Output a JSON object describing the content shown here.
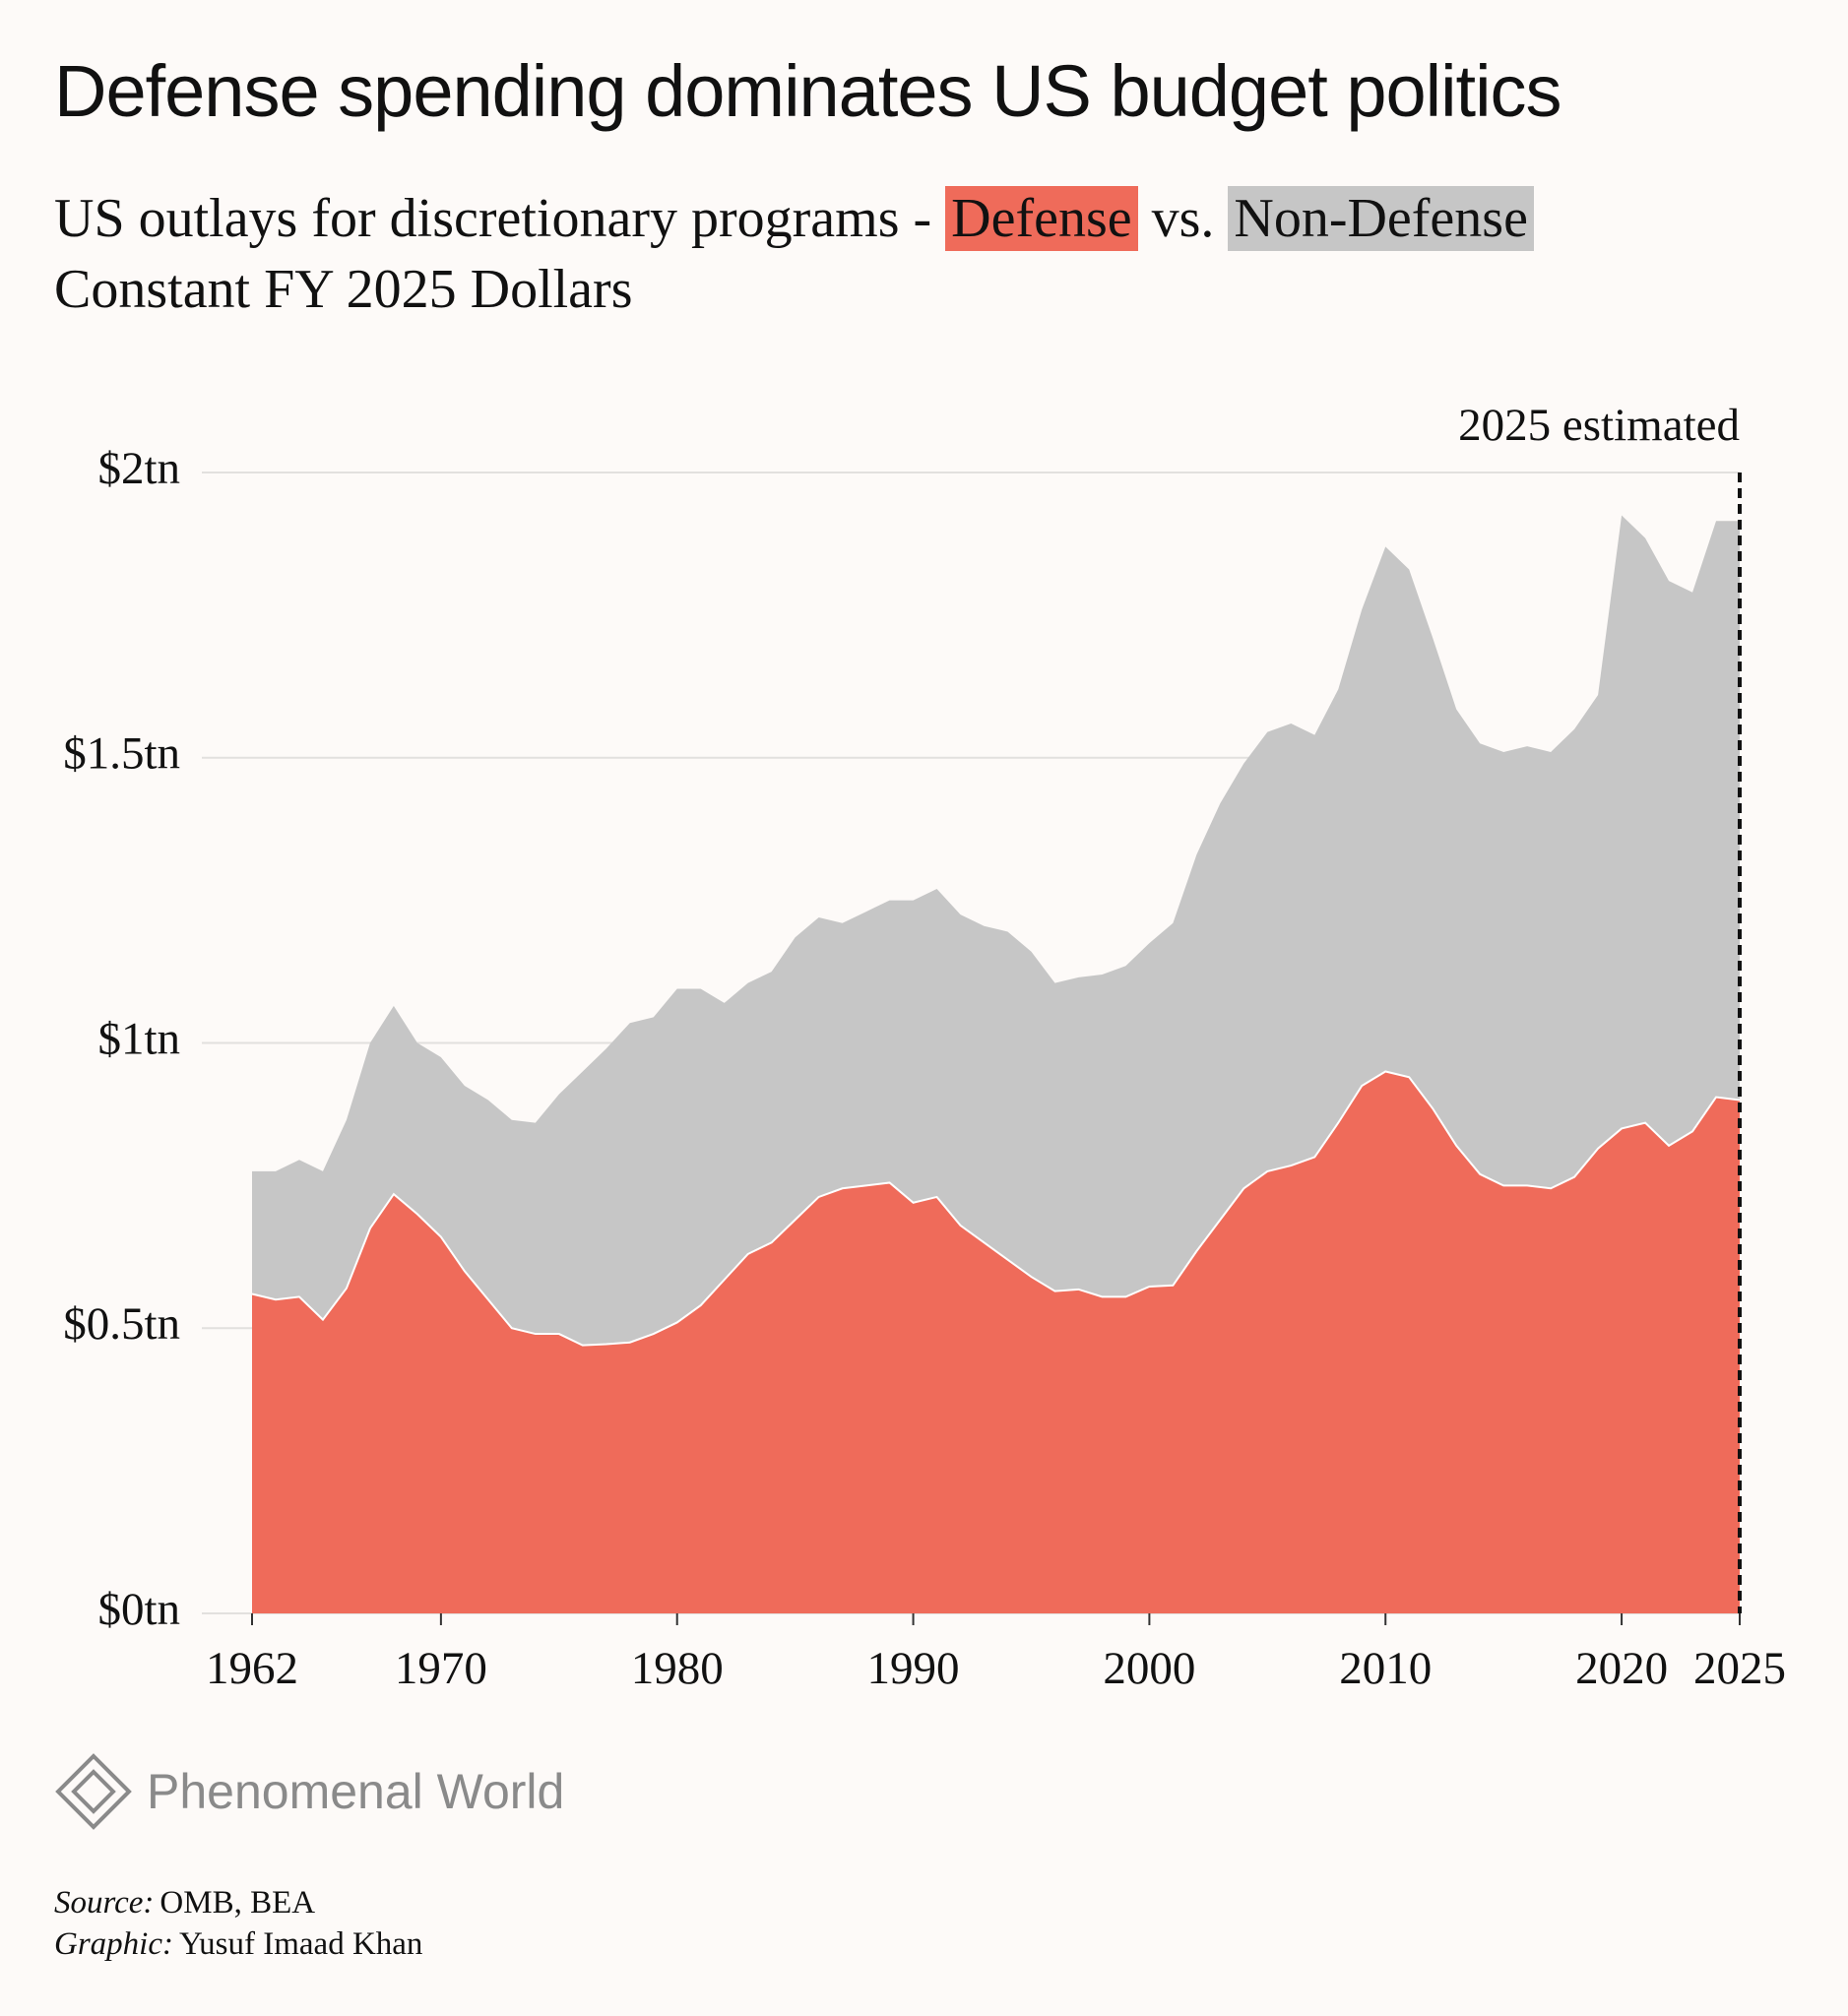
{
  "chart_data": {
    "type": "area",
    "stacked": true,
    "title": "Defense spending dominates US budget politics",
    "subtitle": "US outlays for discretionary programs -",
    "subtitle_join": "vs.",
    "subtitle_line2": "Constant FY 2025 Dollars",
    "annotation": "2025 estimated",
    "annotation_x": 2025,
    "x": [
      1962,
      1963,
      1964,
      1965,
      1966,
      1967,
      1968,
      1969,
      1970,
      1971,
      1972,
      1973,
      1974,
      1975,
      1976,
      1977,
      1978,
      1979,
      1980,
      1981,
      1982,
      1983,
      1984,
      1985,
      1986,
      1987,
      1988,
      1989,
      1990,
      1991,
      1992,
      1993,
      1994,
      1995,
      1996,
      1997,
      1998,
      1999,
      2000,
      2001,
      2002,
      2003,
      2004,
      2005,
      2006,
      2007,
      2008,
      2009,
      2010,
      2011,
      2012,
      2013,
      2014,
      2015,
      2016,
      2017,
      2018,
      2019,
      2020,
      2021,
      2022,
      2023,
      2024,
      2025
    ],
    "series": [
      {
        "name": "Defense",
        "color": "#ef6b5a",
        "values": [
          0.56,
          0.55,
          0.555,
          0.515,
          0.57,
          0.675,
          0.735,
          0.7,
          0.66,
          0.6,
          0.55,
          0.5,
          0.49,
          0.49,
          0.47,
          0.472,
          0.475,
          0.49,
          0.51,
          0.54,
          0.585,
          0.63,
          0.65,
          0.69,
          0.73,
          0.745,
          0.75,
          0.755,
          0.72,
          0.73,
          0.68,
          0.65,
          0.62,
          0.59,
          0.565,
          0.568,
          0.555,
          0.555,
          0.573,
          0.575,
          0.635,
          0.69,
          0.745,
          0.775,
          0.785,
          0.8,
          0.86,
          0.925,
          0.95,
          0.94,
          0.885,
          0.82,
          0.77,
          0.75,
          0.75,
          0.745,
          0.765,
          0.815,
          0.85,
          0.86,
          0.82,
          0.845,
          0.905,
          0.9
        ]
      },
      {
        "name": "Non-Defense",
        "color": "#c6c6c6",
        "values": [
          0.215,
          0.225,
          0.24,
          0.26,
          0.295,
          0.325,
          0.33,
          0.3,
          0.315,
          0.325,
          0.35,
          0.365,
          0.37,
          0.42,
          0.48,
          0.518,
          0.56,
          0.555,
          0.585,
          0.555,
          0.485,
          0.475,
          0.475,
          0.495,
          0.49,
          0.465,
          0.48,
          0.495,
          0.53,
          0.54,
          0.545,
          0.555,
          0.575,
          0.57,
          0.54,
          0.547,
          0.565,
          0.58,
          0.602,
          0.635,
          0.695,
          0.73,
          0.745,
          0.77,
          0.775,
          0.74,
          0.76,
          0.835,
          0.92,
          0.89,
          0.825,
          0.765,
          0.755,
          0.76,
          0.77,
          0.765,
          0.785,
          0.795,
          1.075,
          1.025,
          0.99,
          0.945,
          1.01,
          1.015
        ]
      }
    ],
    "xlim": [
      1962,
      2025
    ],
    "xticks": [
      1962,
      1970,
      1980,
      1990,
      2000,
      2010,
      2020,
      2025
    ],
    "ylim": [
      0,
      2
    ],
    "yticks": [
      {
        "value": 0,
        "label": "$0tn"
      },
      {
        "value": 0.5,
        "label": "$0.5tn"
      },
      {
        "value": 1,
        "label": "$1tn"
      },
      {
        "value": 1.5,
        "label": "$1.5tn"
      },
      {
        "value": 2,
        "label": "$2tn"
      }
    ],
    "grid": true
  },
  "logo": "Phenomenal World",
  "credits": [
    {
      "label": "Source:",
      "text": "OMB, BEA"
    },
    {
      "label": "Graphic:",
      "text": "Yusuf Imaad Khan"
    }
  ]
}
